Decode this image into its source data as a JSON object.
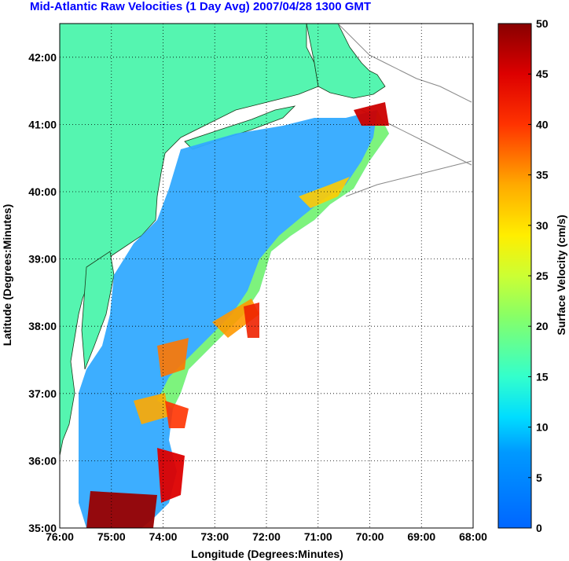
{
  "title": "Mid-Atlantic Raw Velocities (1 Day Avg) 2007/04/28 1300 GMT",
  "map": {
    "xlabel": "Longitude (Degrees:Minutes)",
    "ylabel": "Latitude (Degrees:Minutes)",
    "x_ticks": [
      "76:00",
      "75:00",
      "74:00",
      "73:00",
      "72:00",
      "71:00",
      "70:00",
      "69:00",
      "68:00"
    ],
    "y_ticks": [
      "42:00",
      "41:00",
      "40:00",
      "39:00",
      "38:00",
      "37:00",
      "36:00",
      "35:00"
    ],
    "lon_range": [
      -76,
      -68
    ],
    "lat_range": [
      35,
      42.5
    ],
    "grid": true,
    "land_color": "#55f5b0",
    "ocean_color": "#ffffff"
  },
  "colorbar": {
    "label": "Surface Velocity (cm/s)",
    "ticks": [
      "0",
      "5",
      "10",
      "15",
      "20",
      "25",
      "30",
      "35",
      "40",
      "45",
      "50"
    ],
    "range": [
      0,
      50
    ],
    "colormap": "jet"
  }
}
